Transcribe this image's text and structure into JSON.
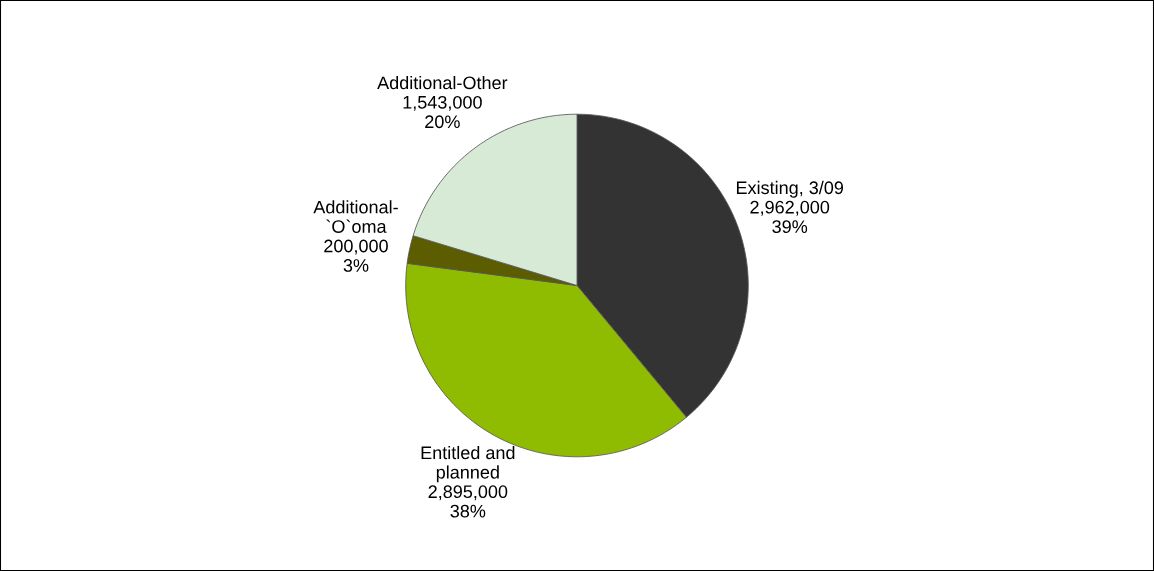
{
  "chart_data": {
    "type": "pie",
    "categories": [
      "Existing, 3/09",
      "Entitled and\nplanned",
      "Additional-\n`O`oma",
      "Additional-Other"
    ],
    "values": [
      2962000,
      2895000,
      200000,
      1543000
    ],
    "value_labels": [
      "2,962,000\n39%",
      "2,895,000\n38%",
      "200,000\n3%",
      "1,543,000\n20%"
    ],
    "colors": [
      "#333333",
      "#8fbc00",
      "#5c5c00",
      "#d6ead6"
    ],
    "legend": false
  }
}
